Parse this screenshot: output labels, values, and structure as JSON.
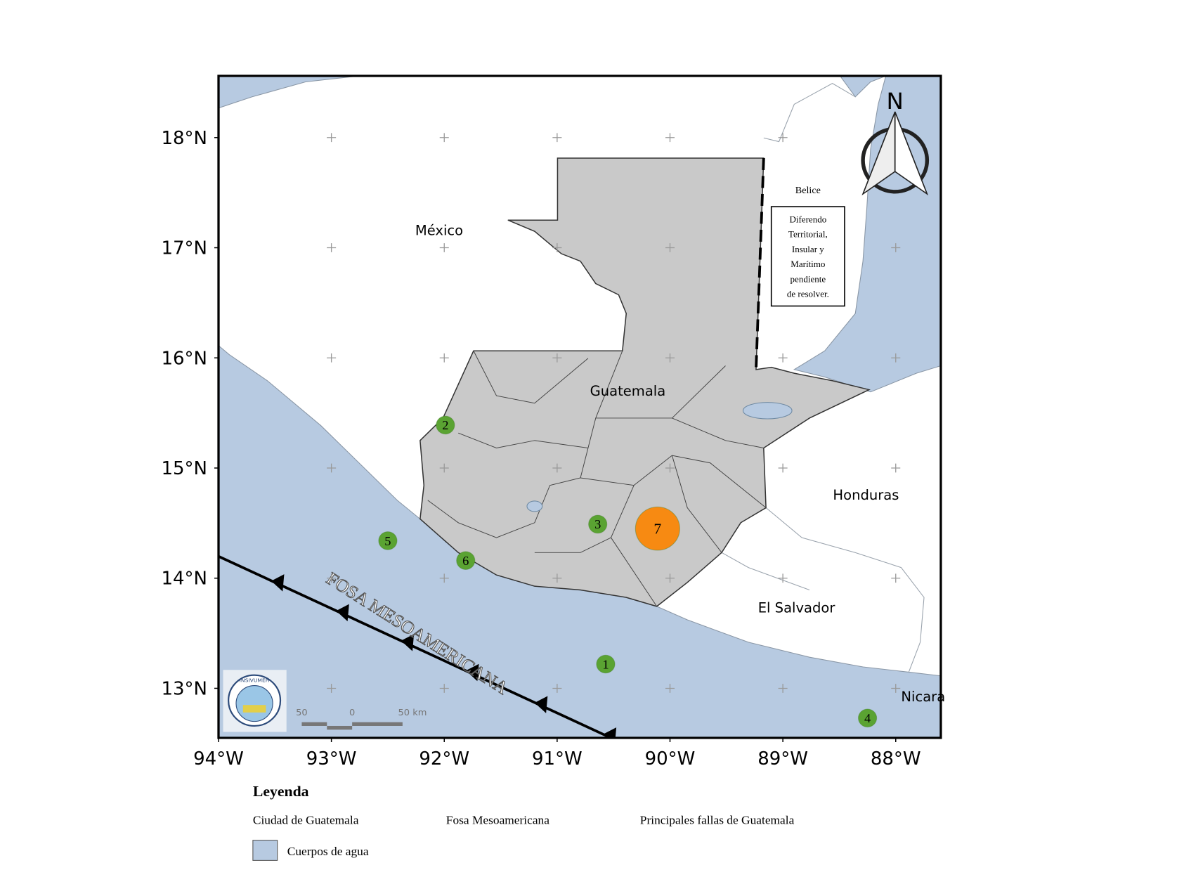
{
  "map": {
    "xlim": [
      -94,
      -87.6
    ],
    "ylim": [
      12.55,
      18.56
    ],
    "xticks": [
      {
        "value": -94,
        "label": "94°W"
      },
      {
        "value": -93,
        "label": "93°W"
      },
      {
        "value": -92,
        "label": "92°W"
      },
      {
        "value": -91,
        "label": "91°W"
      },
      {
        "value": -90,
        "label": "90°W"
      },
      {
        "value": -89,
        "label": "89°W"
      },
      {
        "value": -88,
        "label": "88°W"
      }
    ],
    "yticks": [
      {
        "value": 13,
        "label": "13°N"
      },
      {
        "value": 14,
        "label": "14°N"
      },
      {
        "value": 15,
        "label": "15°N"
      },
      {
        "value": 16,
        "label": "16°N"
      },
      {
        "value": 17,
        "label": "17°N"
      },
      {
        "value": 18,
        "label": "18°N"
      }
    ],
    "countries": [
      "México",
      "Guatemala",
      "Honduras",
      "El Salvador",
      "Nicara"
    ],
    "belize": {
      "name": "Belice",
      "note": [
        "Diferendo",
        "Territorial,",
        "Insular y",
        "Marítimo",
        "pendiente",
        "de resolver."
      ]
    },
    "trench_label": "FOSA MESOAMERICANA",
    "compass": "N",
    "logo": "INSIVUMEH",
    "scale_bar": [
      "50",
      "0",
      "50 km"
    ],
    "events": {
      "color": "#5aa332",
      "items": [
        {
          "label": "1",
          "lon": -90.57,
          "lat": 13.22
        },
        {
          "label": "2",
          "lon": -91.99,
          "lat": 15.39
        },
        {
          "label": "3",
          "lon": -90.64,
          "lat": 14.49
        },
        {
          "label": "4",
          "lon": -88.25,
          "lat": 12.73
        },
        {
          "label": "5",
          "lon": -92.5,
          "lat": 14.34
        },
        {
          "label": "6",
          "lon": -91.81,
          "lat": 14.16
        }
      ]
    },
    "main_event": {
      "label": "7",
      "lon": -90.11,
      "lat": 14.45,
      "color": "#f78a12"
    }
  },
  "legend": {
    "title": "Leyenda",
    "items": [
      "Ciudad de Guatemala",
      "Fosa Mesoamericana",
      "Principales fallas de Guatemala",
      "Cuerpos de agua"
    ]
  }
}
